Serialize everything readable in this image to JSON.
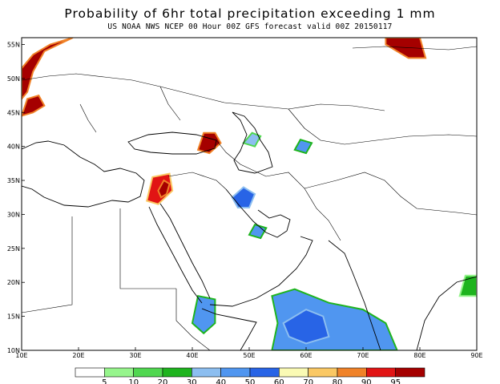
{
  "header": {
    "title": "Probability of 6hr total precipitation exceeding 1 mm",
    "subtitle": "US NOAA NWS NCEP 00 Hour 00Z GFS forecast valid 00Z 20150117"
  },
  "axes": {
    "lon_min": 10,
    "lon_max": 90,
    "lat_min": 10,
    "lat_max": 56,
    "lon_ticks": [
      "10E",
      "20E",
      "30E",
      "40E",
      "50E",
      "60E",
      "70E",
      "80E",
      "90E"
    ],
    "lat_ticks": [
      "10N",
      "15N",
      "20N",
      "25N",
      "30N",
      "35N",
      "40N",
      "45N",
      "50N",
      "55N"
    ]
  },
  "legend": {
    "thresholds": [
      "5",
      "10",
      "20",
      "30",
      "40",
      "50",
      "60",
      "70",
      "80",
      "90",
      "95"
    ],
    "colors": [
      "#ffffff",
      "#96f58c",
      "#50d750",
      "#1eb41e",
      "#8cbef0",
      "#5096f0",
      "#2864e6",
      "#fafab4",
      "#fac864",
      "#f08228",
      "#e11414",
      "#a50000"
    ]
  },
  "regions": [
    {
      "name": "western-europe",
      "level": 11,
      "pts": [
        [
          10,
          47
        ],
        [
          10,
          51.5
        ],
        [
          12,
          53.5
        ],
        [
          15,
          55
        ],
        [
          19,
          56
        ],
        [
          14,
          54
        ],
        [
          12,
          51
        ],
        [
          11,
          48
        ]
      ]
    },
    {
      "name": "alps",
      "level": 11,
      "pts": [
        [
          10,
          44.5
        ],
        [
          11,
          47
        ],
        [
          13,
          47.5
        ],
        [
          14,
          46
        ],
        [
          12,
          45
        ]
      ]
    },
    {
      "name": "siberia",
      "level": 11,
      "pts": [
        [
          74,
          56
        ],
        [
          80,
          56
        ],
        [
          81,
          53
        ],
        [
          78,
          53
        ],
        [
          76,
          54
        ],
        [
          74,
          55
        ]
      ]
    },
    {
      "name": "caucasus-turkey",
      "level": 11,
      "pts": [
        [
          41,
          39.5
        ],
        [
          42,
          42
        ],
        [
          44,
          42
        ],
        [
          45,
          40.5
        ],
        [
          43,
          39
        ]
      ]
    },
    {
      "name": "levant",
      "level": 10,
      "pts": [
        [
          32,
          32
        ],
        [
          33,
          35.5
        ],
        [
          36,
          36
        ],
        [
          36.5,
          33.5
        ],
        [
          34,
          31.5
        ]
      ]
    },
    {
      "name": "levant-core",
      "level": 11,
      "pts": [
        [
          34,
          33.5
        ],
        [
          35,
          35
        ],
        [
          36,
          34.5
        ],
        [
          35.5,
          33
        ],
        [
          34.5,
          32.5
        ]
      ]
    },
    {
      "name": "zagros",
      "level": 6,
      "pts": [
        [
          47,
          32.5
        ],
        [
          49,
          34
        ],
        [
          51,
          33
        ],
        [
          50,
          31
        ],
        [
          48,
          31
        ]
      ]
    },
    {
      "name": "gulf-coast",
      "level": 5,
      "pts": [
        [
          50,
          27
        ],
        [
          51,
          28.5
        ],
        [
          53,
          28
        ],
        [
          52,
          26.5
        ]
      ]
    },
    {
      "name": "arabian-sea",
      "level": 5,
      "pts": [
        [
          54,
          18
        ],
        [
          58,
          19
        ],
        [
          64,
          17
        ],
        [
          70,
          16
        ],
        [
          74,
          14
        ],
        [
          76,
          10
        ],
        [
          54,
          10
        ],
        [
          55,
          14
        ]
      ]
    },
    {
      "name": "arabian-sea-core",
      "level": 6,
      "pts": [
        [
          56,
          14
        ],
        [
          60,
          16
        ],
        [
          63,
          15
        ],
        [
          64,
          12
        ],
        [
          60,
          11
        ],
        [
          57,
          12
        ]
      ]
    },
    {
      "name": "yemen",
      "level": 5,
      "pts": [
        [
          40,
          14
        ],
        [
          41,
          18
        ],
        [
          44,
          17.5
        ],
        [
          44,
          14
        ],
        [
          42,
          12.5
        ]
      ]
    },
    {
      "name": "caspian",
      "level": 4,
      "pts": [
        [
          49,
          40.5
        ],
        [
          50.5,
          42
        ],
        [
          52,
          41.5
        ],
        [
          51,
          40
        ]
      ]
    },
    {
      "name": "turkmen",
      "level": 5,
      "pts": [
        [
          58,
          39.5
        ],
        [
          59,
          41
        ],
        [
          61,
          40.5
        ],
        [
          60,
          39
        ]
      ]
    },
    {
      "name": "india-east",
      "level": 3,
      "pts": [
        [
          87,
          18
        ],
        [
          88,
          21
        ],
        [
          90,
          21
        ],
        [
          90,
          18
        ]
      ]
    }
  ]
}
